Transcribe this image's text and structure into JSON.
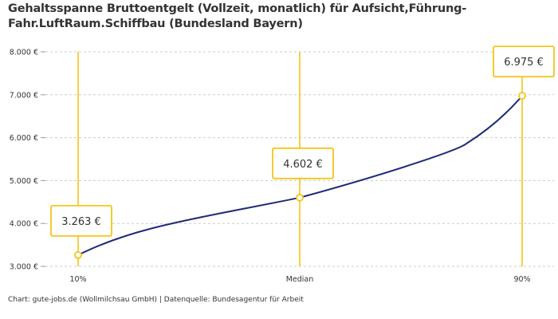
{
  "page": {
    "title": "Gehaltsspanne Bruttoentgelt (Vollzeit, monatlich) für Aufsicht,Führung-Fahr.LuftRaum.Schiffbau (Bundesland Bayern)",
    "footer": "Chart: gute-jobs.de (Wollmilchsau GmbH) | Datenquelle: Bundesagentur für Arbeit"
  },
  "colors": {
    "line": "#1f2a7a",
    "accent": "#f5c518",
    "grid": "#cccccc",
    "text": "#333333"
  },
  "chart_data": {
    "type": "line",
    "title": "Gehaltsspanne Bruttoentgelt (Vollzeit, monatlich) für Aufsicht,Führung-Fahr.LuftRaum.Schiffbau (Bundesland Bayern)",
    "categories": [
      "10%",
      "Median",
      "90%"
    ],
    "values": [
      3263,
      4602,
      6975
    ],
    "value_labels": [
      "3.263 €",
      "4.602 €",
      "6.975 €"
    ],
    "y_ticks": [
      3000,
      4000,
      5000,
      6000,
      7000,
      8000
    ],
    "y_tick_labels": [
      "3.000 €",
      "4.000 €",
      "5.000 €",
      "6.000 €",
      "7.000 €",
      "8.000 €"
    ],
    "ylim": [
      3000,
      8000
    ],
    "grid": true,
    "xlabel": "",
    "ylabel": ""
  }
}
